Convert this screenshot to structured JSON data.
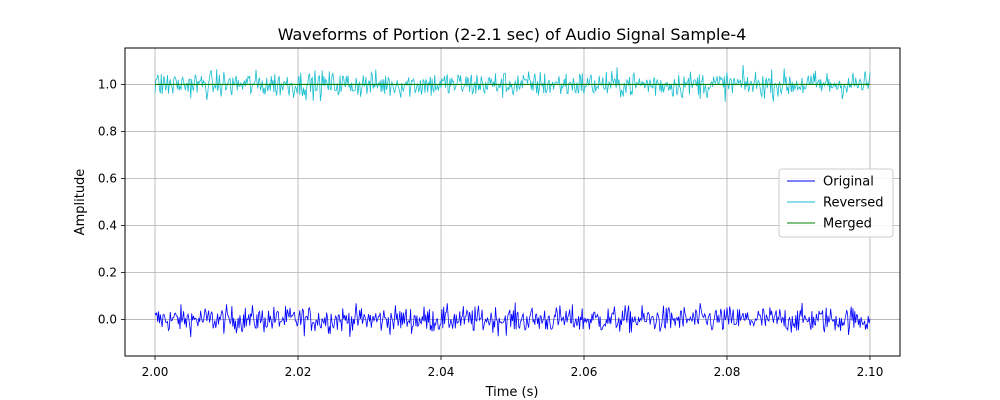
{
  "chart_data": {
    "type": "line",
    "title": "Waveforms of Portion (2-2.1 sec) of Audio Signal Sample-4",
    "xlabel": "Time (s)",
    "ylabel": "Amplitude",
    "xlim": [
      1.9958,
      2.1042
    ],
    "ylim": [
      -0.155,
      1.155
    ],
    "xticks": [
      2.0,
      2.02,
      2.04,
      2.06,
      2.08,
      2.1
    ],
    "xtick_labels": [
      "2.00",
      "2.02",
      "2.04",
      "2.06",
      "2.08",
      "2.10"
    ],
    "yticks": [
      0.0,
      0.2,
      0.4,
      0.6,
      0.8,
      1.0
    ],
    "ytick_labels": [
      "0.0",
      "0.2",
      "0.4",
      "0.6",
      "0.8",
      "1.0"
    ],
    "grid": true,
    "legend_position": "center-right",
    "x_range": [
      2.0,
      2.1
    ],
    "series": [
      {
        "name": "Original",
        "color": "#0000ff",
        "baseline": 0.0,
        "noise_amplitude": 0.085
      },
      {
        "name": "Reversed",
        "color": "#17becf",
        "baseline": 1.0,
        "noise_amplitude": 0.085
      },
      {
        "name": "Merged",
        "color": "#008000",
        "baseline": 1.0,
        "noise_amplitude": 0.0
      }
    ]
  }
}
